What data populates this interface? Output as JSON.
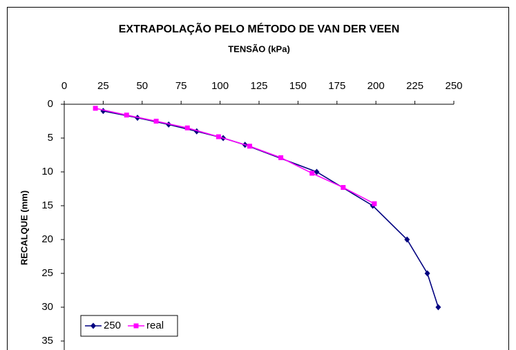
{
  "chart_data": {
    "type": "line",
    "title": "EXTRAPOLAÇÃO PELO MÉTODO DE VAN DER VEEN",
    "x_label": "TENSÃO (kPa)",
    "y_label": "RECALQUE (mm)",
    "xlim": [
      0,
      250
    ],
    "xticks": [
      0,
      25,
      50,
      75,
      100,
      125,
      150,
      175,
      200,
      225,
      250
    ],
    "ylim": [
      0,
      35
    ],
    "yticks": [
      0,
      5,
      10,
      15,
      20,
      25,
      30,
      35
    ],
    "y_inverted": true,
    "x_axis_position": "top",
    "legend": "lower left",
    "series": [
      {
        "name": "250",
        "color": "#000080",
        "marker": "diamond",
        "x": [
          25,
          47,
          67,
          85,
          102,
          116,
          162,
          198,
          220,
          233,
          240
        ],
        "values": [
          1,
          2,
          3,
          4,
          5,
          6,
          10,
          15,
          20,
          25,
          30
        ]
      },
      {
        "name": "real",
        "color": "#ff00ff",
        "marker": "square",
        "x": [
          20,
          40,
          59,
          79,
          99,
          119,
          139,
          159,
          179,
          199
        ],
        "values": [
          0.6,
          1.6,
          2.5,
          3.5,
          4.8,
          6.2,
          7.9,
          10.2,
          12.3,
          14.7
        ]
      }
    ]
  }
}
